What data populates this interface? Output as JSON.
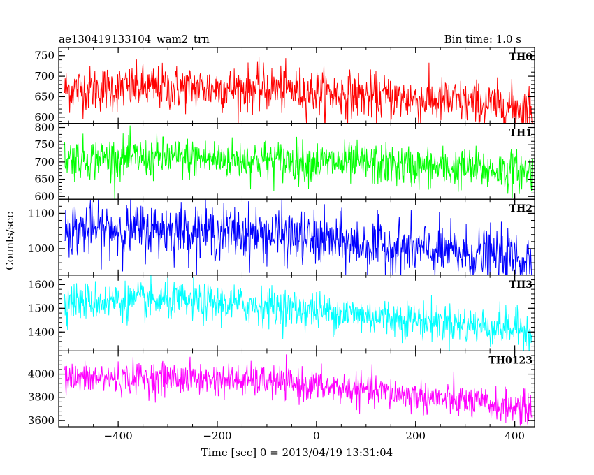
{
  "header": {
    "title": "ae130419133104_wam2_trn",
    "bin_time": "Bin time: 1.0 s"
  },
  "chart_data": {
    "type": "line",
    "xlabel": "Time [sec] 0 = 2013/04/19 13:31:04",
    "ylabel": "Counts/sec",
    "xlim": [
      -520,
      440
    ],
    "x_range_of_data": [
      -508,
      435
    ],
    "bin_seconds": 1.0,
    "x_ticks": [
      -400,
      -200,
      0,
      200,
      400
    ],
    "x_tick_labels": [
      "−400",
      "−200",
      "0",
      "200",
      "400"
    ],
    "series": [
      {
        "name": "TH0",
        "color": "#ff0000",
        "ylim": [
          585,
          770
        ],
        "y_ticks": [
          600,
          650,
          700,
          750
        ],
        "y_tick_labels": [
          "600",
          "650",
          "700",
          "750"
        ],
        "trend_x": [
          -508,
          -300,
          -100,
          100,
          300,
          435
        ],
        "trend_y": [
          668,
          672,
          670,
          652,
          635,
          622
        ],
        "noise_sd": 28
      },
      {
        "name": "TH1",
        "color": "#00ff00",
        "ylim": [
          592,
          812
        ],
        "y_ticks": [
          600,
          650,
          700,
          750,
          800
        ],
        "y_tick_labels": [
          "600",
          "650",
          "700",
          "750",
          "800"
        ],
        "trend_x": [
          -508,
          -300,
          -100,
          100,
          300,
          435
        ],
        "trend_y": [
          710,
          712,
          705,
          693,
          680,
          672
        ],
        "noise_sd": 30
      },
      {
        "name": "TH2",
        "color": "#0000ff",
        "ylim": [
          925,
          1140
        ],
        "y_ticks": [
          1000,
          1100
        ],
        "y_tick_labels": [
          "1000",
          "1100"
        ],
        "trend_x": [
          -508,
          -300,
          -100,
          100,
          300,
          435
        ],
        "trend_y": [
          1055,
          1055,
          1040,
          1010,
          985,
          970
        ],
        "noise_sd": 38
      },
      {
        "name": "TH3",
        "color": "#00ffff",
        "ylim": [
          1320,
          1640
        ],
        "y_ticks": [
          1400,
          1500,
          1600
        ],
        "y_tick_labels": [
          "1400",
          "1500",
          "1600"
        ],
        "trend_x": [
          -508,
          -300,
          -100,
          100,
          300,
          435
        ],
        "trend_y": [
          1530,
          1530,
          1510,
          1470,
          1430,
          1410
        ],
        "noise_sd": 40
      },
      {
        "name": "TH0123",
        "color": "#ff00ff",
        "ylim": [
          3545,
          4200
        ],
        "y_ticks": [
          3600,
          3800,
          4000
        ],
        "y_tick_labels": [
          "3600",
          "3800",
          "4000"
        ],
        "trend_x": [
          -508,
          -300,
          -100,
          100,
          300,
          435
        ],
        "trend_y": [
          3960,
          3965,
          3935,
          3860,
          3760,
          3700
        ],
        "noise_sd": 70
      }
    ]
  }
}
